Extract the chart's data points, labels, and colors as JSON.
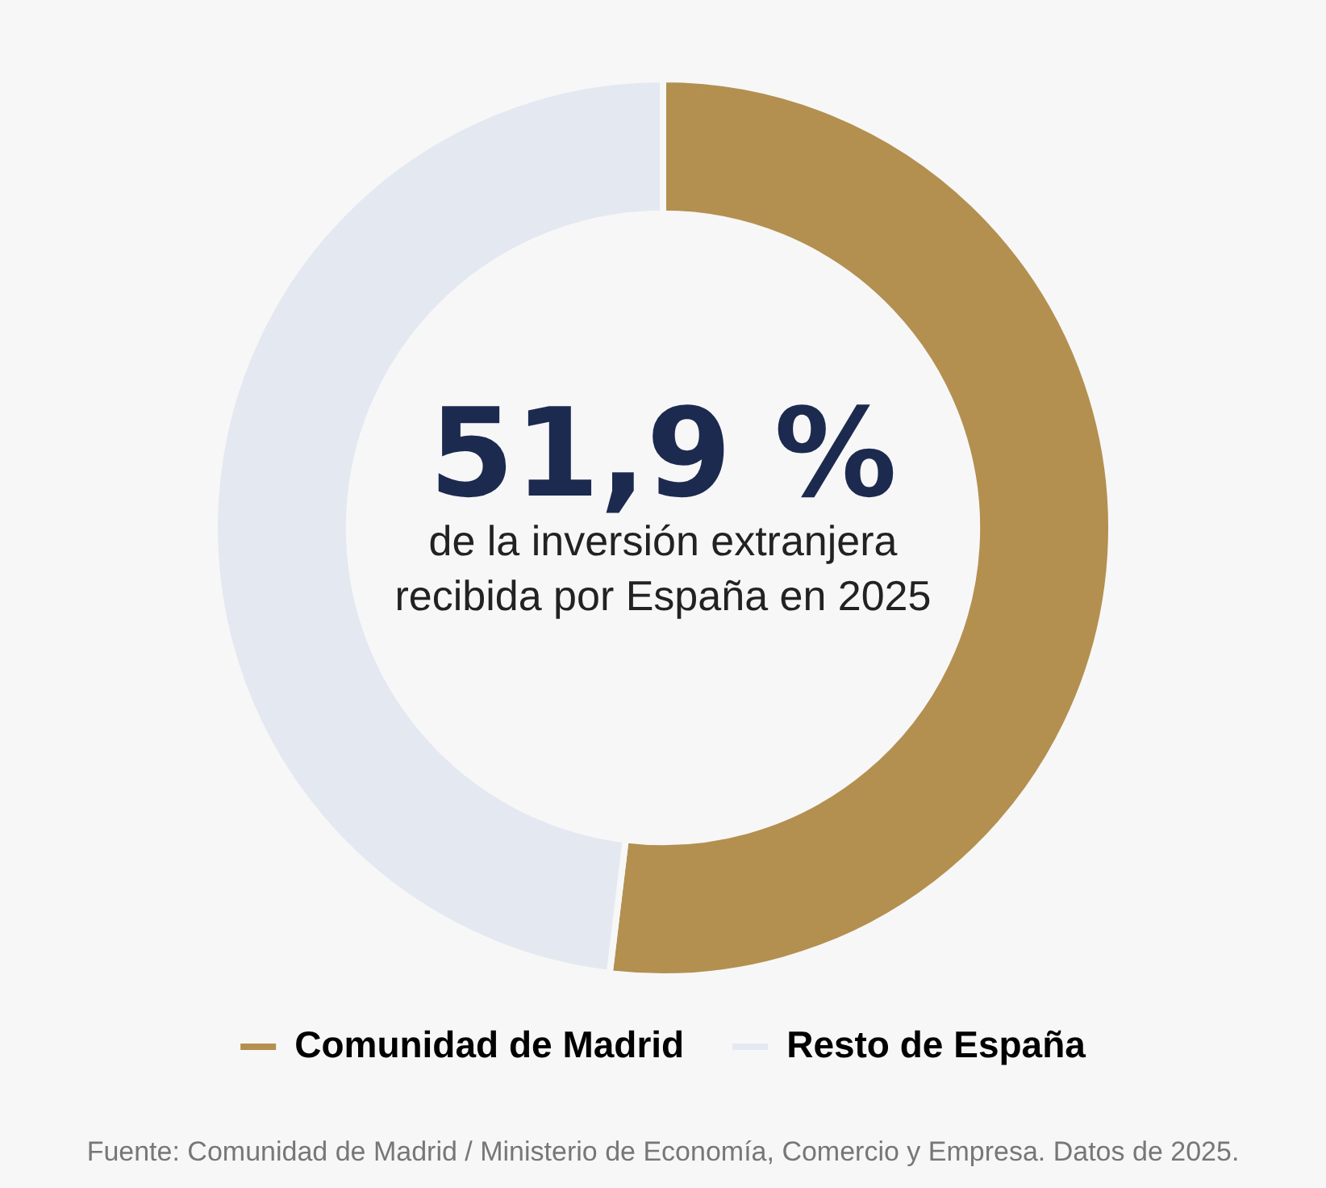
{
  "chart_data": {
    "type": "donut",
    "categories": [
      "Comunidad de Madrid",
      "Resto de España"
    ],
    "values": [
      51.9,
      48.1
    ],
    "colors": [
      "#b38f50",
      "#e4e8f1"
    ],
    "value_labels": [
      "51,9 %",
      null
    ],
    "legend": "bottom",
    "annotations": [
      "de la inversión extranjera recibida por España en 2025",
      "Fuente: Comunidad de Madrid / Ministerio de Economía, Comercio y Empresa. Datos de 2025."
    ]
  }
}
